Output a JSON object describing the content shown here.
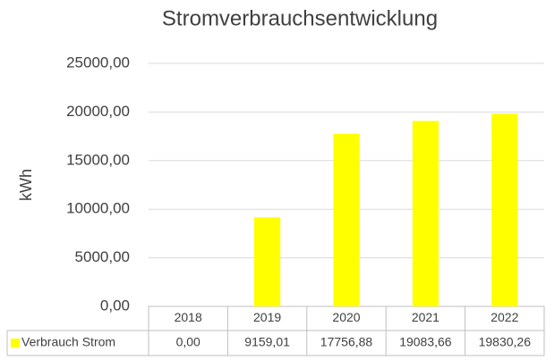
{
  "chart_data": {
    "type": "bar",
    "title": "Stromverbrauchsentwicklung",
    "y_label": "kWh",
    "categories": [
      "2018",
      "2019",
      "2020",
      "2021",
      "2022"
    ],
    "series": [
      {
        "name": "Verbrauch Strom",
        "color": "#ffff00",
        "values": [
          0,
          9159.01,
          17756.88,
          19083.66,
          19830.26
        ],
        "value_labels": [
          "0,00",
          "9159,01",
          "17756,88",
          "19083,66",
          "19830,26"
        ]
      }
    ],
    "ylim": [
      0,
      25000
    ],
    "yticks": [
      {
        "value": 0,
        "label": "0,00"
      },
      {
        "value": 5000,
        "label": "5000,00"
      },
      {
        "value": 10000,
        "label": "10000,00"
      },
      {
        "value": 15000,
        "label": "15000,00"
      },
      {
        "value": 20000,
        "label": "20000,00"
      },
      {
        "value": 25000,
        "label": "25000,00"
      }
    ],
    "grid": true,
    "data_table": true
  }
}
